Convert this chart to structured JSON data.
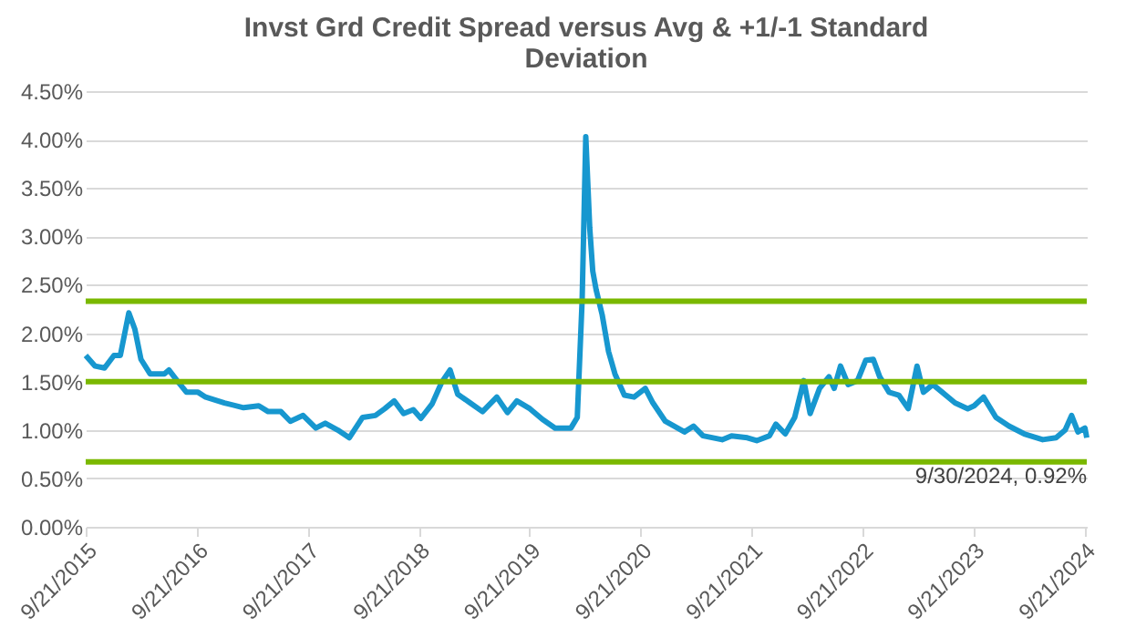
{
  "chart_data": {
    "type": "line",
    "title": "Invst Grd Credit Spread versus Avg & +1/-1 Standard Deviation",
    "x": [
      "2015-09-21",
      "2015-10-22",
      "2015-11-22",
      "2015-12-23",
      "2016-01-13",
      "2016-02-10",
      "2016-03-01",
      "2016-03-21",
      "2016-04-20",
      "2016-06-06",
      "2016-06-21",
      "2016-07-18",
      "2016-08-18",
      "2016-09-25",
      "2016-10-20",
      "2016-12-21",
      "2017-02-22",
      "2017-04-13",
      "2017-05-14",
      "2017-06-25",
      "2017-07-26",
      "2017-09-06",
      "2017-10-18",
      "2017-11-18",
      "2017-12-29",
      "2018-02-05",
      "2018-03-21",
      "2018-05-02",
      "2018-06-02",
      "2018-07-03",
      "2018-08-03",
      "2018-09-04",
      "2018-09-29",
      "2018-11-05",
      "2018-12-06",
      "2019-01-03",
      "2019-01-28",
      "2019-03-10",
      "2019-04-20",
      "2019-06-06",
      "2019-07-11",
      "2019-08-11",
      "2019-09-23",
      "2019-11-03",
      "2019-12-15",
      "2020-02-05",
      "2020-02-26",
      "2020-03-13",
      "2020-03-25",
      "2020-04-07",
      "2020-04-17",
      "2020-04-28",
      "2020-05-18",
      "2020-06-08",
      "2020-06-29",
      "2020-07-30",
      "2020-08-31",
      "2020-10-07",
      "2020-11-01",
      "2020-12-12",
      "2021-02-13",
      "2021-03-15",
      "2021-04-15",
      "2021-06-17",
      "2021-07-18",
      "2021-09-08",
      "2021-10-09",
      "2021-11-20",
      "2021-12-11",
      "2022-01-11",
      "2022-02-11",
      "2022-03-13",
      "2022-04-03",
      "2022-05-04",
      "2022-06-04",
      "2022-06-21",
      "2022-07-12",
      "2022-08-06",
      "2022-09-06",
      "2022-10-03",
      "2022-10-28",
      "2022-11-18",
      "2022-12-19",
      "2023-01-20",
      "2023-02-20",
      "2023-03-21",
      "2023-04-11",
      "2023-05-12",
      "2023-06-12",
      "2023-07-24",
      "2023-09-04",
      "2023-09-25",
      "2023-10-26",
      "2023-12-06",
      "2024-01-18",
      "2024-03-08",
      "2024-05-08",
      "2024-06-21",
      "2024-07-21",
      "2024-08-11",
      "2024-09-01",
      "2024-09-24",
      "2024-09-30"
    ],
    "series": [
      {
        "color": "#1797cf",
        "values": [
          1.77,
          1.66,
          1.64,
          1.77,
          1.77,
          2.21,
          2.04,
          1.73,
          1.58,
          1.58,
          1.62,
          1.51,
          1.39,
          1.39,
          1.34,
          1.28,
          1.23,
          1.25,
          1.19,
          1.19,
          1.09,
          1.15,
          1.02,
          1.07,
          1.0,
          0.92,
          1.13,
          1.15,
          1.22,
          1.3,
          1.17,
          1.21,
          1.12,
          1.27,
          1.49,
          1.62,
          1.37,
          1.28,
          1.19,
          1.34,
          1.18,
          1.3,
          1.22,
          1.11,
          1.02,
          1.02,
          1.13,
          2.34,
          4.03,
          3.09,
          2.64,
          2.45,
          2.19,
          1.81,
          1.58,
          1.36,
          1.34,
          1.43,
          1.28,
          1.09,
          0.98,
          1.04,
          0.94,
          0.9,
          0.94,
          0.92,
          0.89,
          0.94,
          1.06,
          0.96,
          1.13,
          1.51,
          1.17,
          1.43,
          1.55,
          1.43,
          1.66,
          1.47,
          1.51,
          1.72,
          1.73,
          1.55,
          1.39,
          1.36,
          1.22,
          1.66,
          1.39,
          1.47,
          1.39,
          1.28,
          1.22,
          1.25,
          1.34,
          1.13,
          1.04,
          0.96,
          0.9,
          0.92,
          1.0,
          1.15,
          0.98,
          1.02,
          0.92
        ]
      }
    ],
    "xlim": [
      "2015-09-21",
      "2024-09-30"
    ],
    "xticks": [
      {
        "value": "2015-09-21",
        "label": "9/21/2015"
      },
      {
        "value": "2016-09-21",
        "label": "9/21/2016"
      },
      {
        "value": "2017-09-21",
        "label": "9/21/2017"
      },
      {
        "value": "2018-09-21",
        "label": "9/21/2018"
      },
      {
        "value": "2019-09-21",
        "label": "9/21/2019"
      },
      {
        "value": "2020-09-21",
        "label": "9/21/2020"
      },
      {
        "value": "2021-09-21",
        "label": "9/21/2021"
      },
      {
        "value": "2022-09-21",
        "label": "9/21/2022"
      },
      {
        "value": "2023-09-21",
        "label": "9/21/2023"
      },
      {
        "value": "2024-09-21",
        "label": "9/21/2024"
      }
    ],
    "ylim": [
      0,
      4.5
    ],
    "yticks": [
      {
        "value": 0,
        "label": "0.00%"
      },
      {
        "value": 0.5,
        "label": "0.50%"
      },
      {
        "value": 1,
        "label": "1.00%"
      },
      {
        "value": 1.5,
        "label": "1.50%"
      },
      {
        "value": 2,
        "label": "2.00%"
      },
      {
        "value": 2.5,
        "label": "2.50%"
      },
      {
        "value": 3,
        "label": "3.00%"
      },
      {
        "value": 3.5,
        "label": "3.50%"
      },
      {
        "value": 4,
        "label": "4.00%"
      },
      {
        "value": 4.5,
        "label": "4.50%"
      }
    ],
    "ref_lines": [
      {
        "axis": "y",
        "value": 2.33,
        "color": "#7ab800"
      },
      {
        "axis": "y",
        "value": 1.5,
        "color": "#7ab800"
      },
      {
        "axis": "y",
        "value": 0.67,
        "color": "#7ab800"
      }
    ],
    "annotations": [
      {
        "text": "9/30/2024, 0.92%",
        "x": "2024-09-30",
        "y": 0.92
      }
    ],
    "grid": "y",
    "line_style": "solid"
  }
}
